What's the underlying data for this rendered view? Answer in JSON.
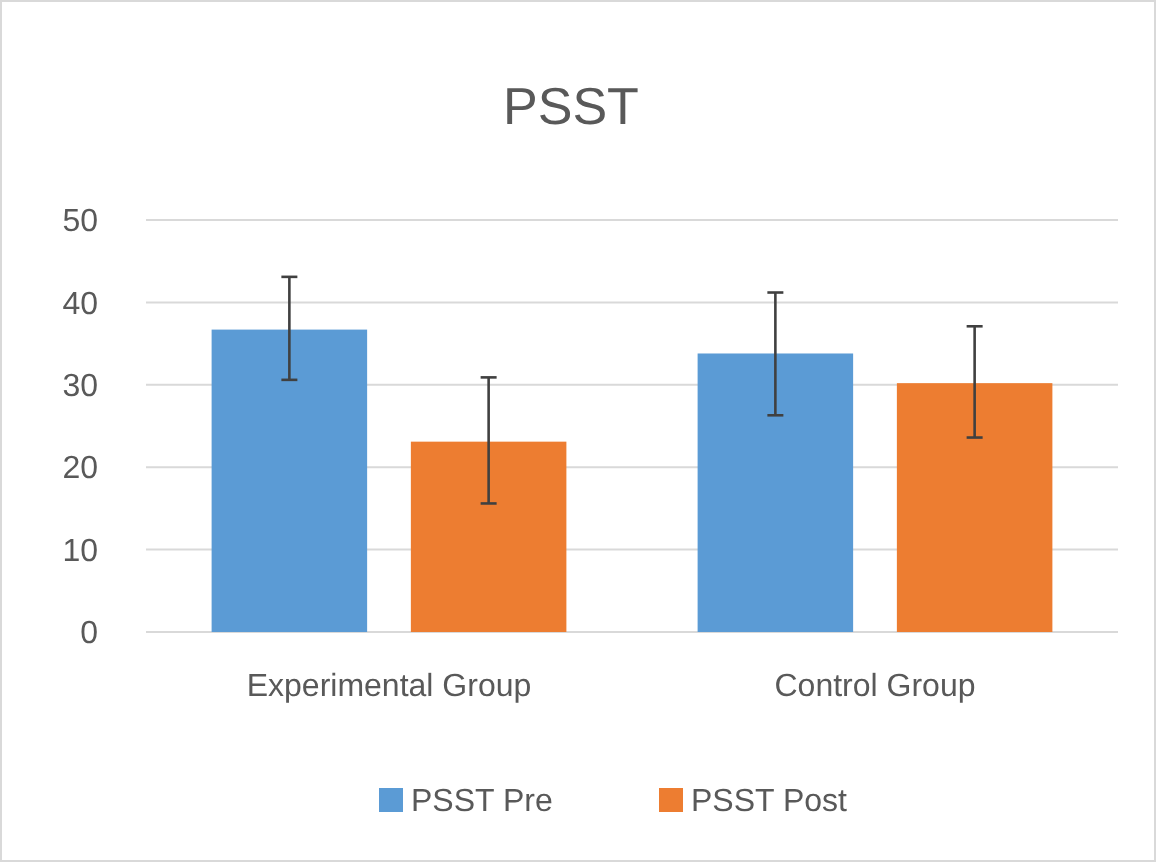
{
  "chart_data": {
    "type": "bar",
    "title": "PSST",
    "categories": [
      "Experimental Group",
      "Control Group"
    ],
    "series": [
      {
        "name": "PSST Pre",
        "color": "#5b9bd5",
        "values": [
          36.7,
          33.8
        ],
        "errors": [
          [
            30.6,
            43.1
          ],
          [
            26.3,
            41.2
          ]
        ]
      },
      {
        "name": "PSST Post",
        "color": "#ed7d31",
        "values": [
          23.1,
          30.2
        ],
        "errors": [
          [
            15.6,
            30.9
          ],
          [
            23.6,
            37.1
          ]
        ]
      }
    ],
    "ylim": [
      0,
      50
    ],
    "yticks": [
      0,
      10,
      20,
      30,
      40,
      50
    ],
    "grid": "y",
    "legend": "bottom"
  }
}
